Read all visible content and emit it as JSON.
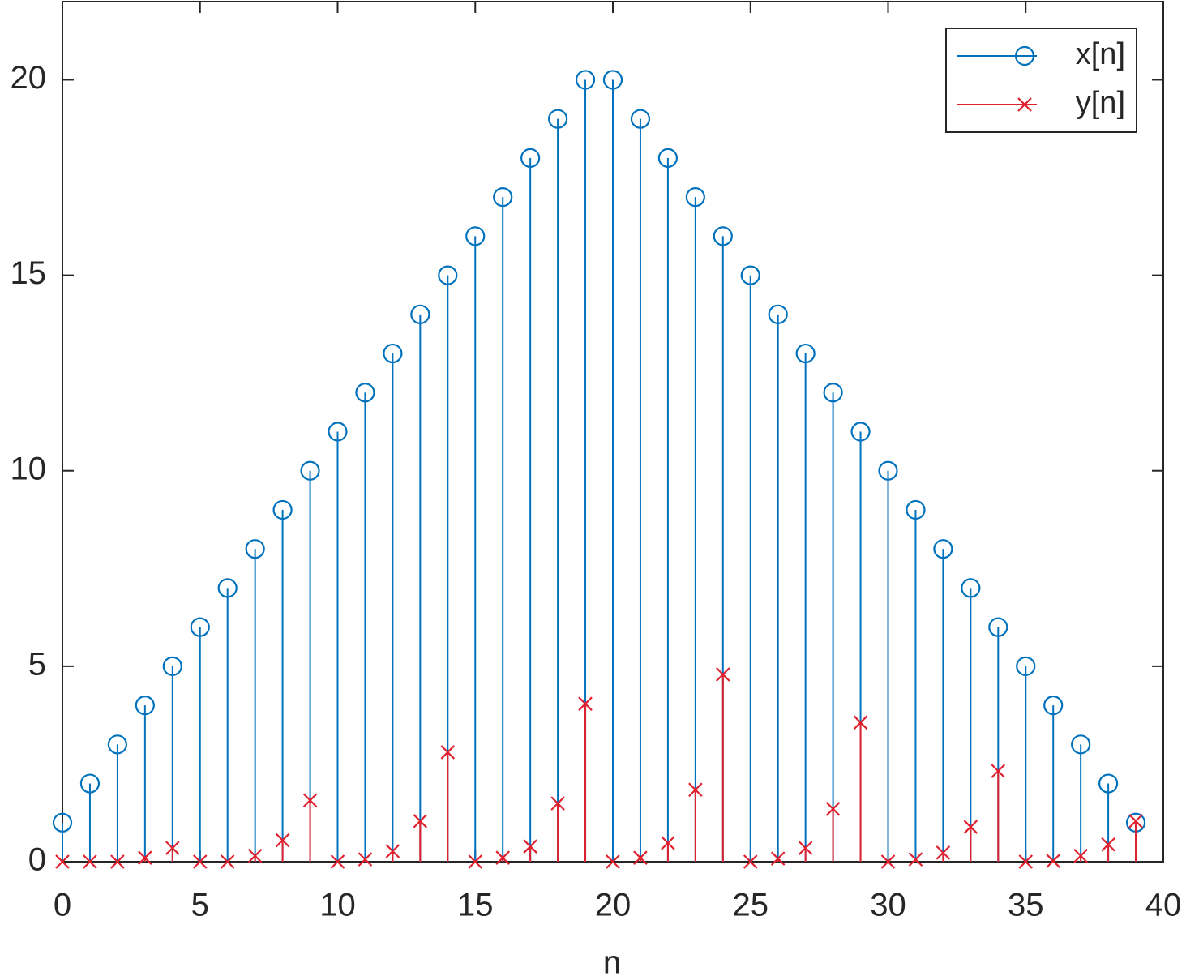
{
  "chart_data": {
    "type": "stem",
    "xlabel": "n",
    "x": [
      0,
      1,
      2,
      3,
      4,
      5,
      6,
      7,
      8,
      9,
      10,
      11,
      12,
      13,
      14,
      15,
      16,
      17,
      18,
      19,
      20,
      21,
      22,
      23,
      24,
      25,
      26,
      27,
      28,
      29,
      30,
      31,
      32,
      33,
      34,
      35,
      36,
      37,
      38,
      39
    ],
    "series": [
      {
        "name": "x[n]",
        "color": "#0072bd",
        "marker": "o",
        "values": [
          1,
          2,
          3,
          4,
          5,
          6,
          7,
          8,
          9,
          10,
          11,
          12,
          13,
          14,
          15,
          16,
          17,
          18,
          19,
          20,
          20,
          19,
          18,
          17,
          16,
          15,
          14,
          13,
          12,
          11,
          10,
          9,
          8,
          7,
          6,
          5,
          4,
          3,
          2,
          1
        ]
      },
      {
        "name": "y[n]",
        "color": "#e0202e",
        "marker": "x",
        "values": [
          0,
          0,
          0,
          0.1,
          0.35,
          0,
          0,
          0.15,
          0.55,
          1.57,
          0,
          0.06,
          0.27,
          1.04,
          2.8,
          0,
          0.1,
          0.39,
          1.49,
          4.04,
          0,
          0.1,
          0.48,
          1.84,
          4.79,
          0,
          0.08,
          0.35,
          1.35,
          3.56,
          0,
          0.06,
          0.23,
          0.89,
          2.32,
          0,
          0.02,
          0.15,
          0.44,
          1.04
        ]
      }
    ],
    "xlim": [
      0,
      40
    ],
    "ylim": [
      0,
      22
    ],
    "xticks": [
      0,
      5,
      10,
      15,
      20,
      25,
      30,
      35,
      40
    ],
    "yticks": [
      0,
      5,
      10,
      15,
      20
    ],
    "legend": "top-right"
  }
}
